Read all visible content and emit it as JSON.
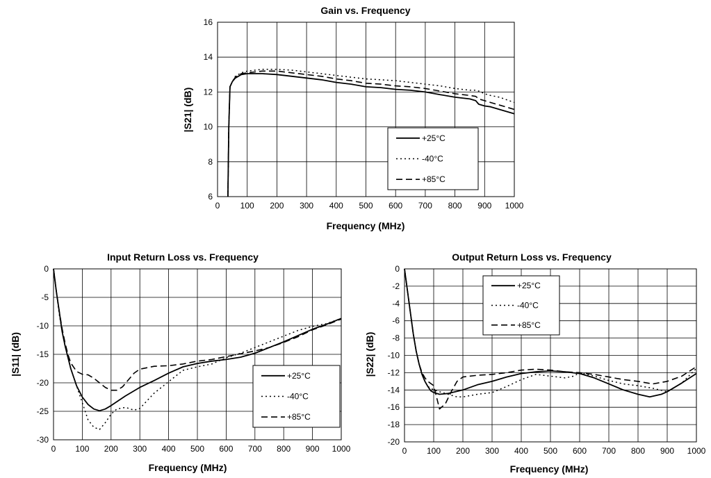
{
  "chart_data": [
    {
      "type": "line",
      "title": "Gain vs. Frequency",
      "xlabel": "Frequency (MHz)",
      "ylabel": "|S21| (dB)",
      "xlim": [
        0,
        1000
      ],
      "ylim": [
        6,
        16
      ],
      "x_ticks": [
        "0",
        "100",
        "200",
        "300",
        "400",
        "500",
        "600",
        "700",
        "800",
        "900",
        "1000"
      ],
      "y_ticks": [
        "6",
        "8",
        "10",
        "12",
        "14",
        "16"
      ],
      "grid": true,
      "legend_placement": "center-right",
      "series": [
        {
          "name": "+25°C",
          "style": "solid",
          "x": [
            35,
            38,
            42,
            50,
            60,
            80,
            100,
            150,
            200,
            250,
            300,
            350,
            400,
            450,
            500,
            550,
            600,
            650,
            700,
            750,
            800,
            850,
            870,
            880,
            900,
            920,
            950,
            1000
          ],
          "y": [
            6.0,
            10.0,
            12.3,
            12.6,
            12.8,
            13.0,
            13.05,
            13.05,
            13.0,
            12.9,
            12.8,
            12.7,
            12.55,
            12.45,
            12.3,
            12.25,
            12.15,
            12.1,
            12.0,
            11.85,
            11.7,
            11.6,
            11.5,
            11.3,
            11.2,
            11.15,
            11.0,
            10.75
          ]
        },
        {
          "name": "-40°C",
          "style": "dotted",
          "x": [
            35,
            38,
            42,
            50,
            60,
            80,
            100,
            150,
            200,
            250,
            300,
            350,
            400,
            450,
            500,
            550,
            600,
            650,
            700,
            750,
            800,
            850,
            870,
            880,
            900,
            920,
            950,
            1000
          ],
          "y": [
            6.0,
            10.0,
            12.3,
            12.6,
            12.9,
            13.1,
            13.2,
            13.3,
            13.3,
            13.25,
            13.15,
            13.05,
            12.95,
            12.85,
            12.75,
            12.7,
            12.65,
            12.55,
            12.45,
            12.35,
            12.2,
            12.1,
            12.1,
            12.05,
            11.9,
            11.8,
            11.7,
            11.4
          ]
        },
        {
          "name": "+85°C",
          "style": "dashed",
          "x": [
            35,
            38,
            42,
            50,
            60,
            80,
            100,
            150,
            200,
            250,
            300,
            350,
            400,
            450,
            500,
            550,
            600,
            650,
            700,
            750,
            800,
            850,
            870,
            880,
            900,
            920,
            950,
            1000
          ],
          "y": [
            6.0,
            10.0,
            12.3,
            12.6,
            12.85,
            13.05,
            13.1,
            13.2,
            13.2,
            13.1,
            13.0,
            12.9,
            12.75,
            12.65,
            12.5,
            12.45,
            12.35,
            12.3,
            12.2,
            12.05,
            11.9,
            11.8,
            11.75,
            11.6,
            11.5,
            11.4,
            11.25,
            11.0
          ]
        }
      ]
    },
    {
      "type": "line",
      "title": "Input Return Loss vs. Frequency",
      "xlabel": "Frequency (MHz)",
      "ylabel": "|S11| (dB)",
      "xlim": [
        0,
        1000
      ],
      "ylim": [
        -30,
        0
      ],
      "x_ticks": [
        "0",
        "100",
        "200",
        "300",
        "400",
        "500",
        "600",
        "700",
        "800",
        "900",
        "1000"
      ],
      "y_ticks": [
        "-30",
        "-25",
        "-20",
        "-15",
        "-10",
        "-5",
        "0"
      ],
      "grid": true,
      "legend_placement": "bottom-right",
      "series": [
        {
          "name": "+25°C",
          "style": "solid",
          "x": [
            0,
            10,
            20,
            30,
            40,
            50,
            60,
            80,
            100,
            120,
            140,
            160,
            180,
            200,
            250,
            300,
            350,
            400,
            450,
            500,
            550,
            600,
            650,
            700,
            750,
            800,
            850,
            900,
            950,
            1000
          ],
          "y": [
            0,
            -4,
            -7.5,
            -11,
            -13.5,
            -15.5,
            -17.5,
            -20.5,
            -22.5,
            -23.8,
            -24.6,
            -24.9,
            -24.6,
            -24.0,
            -22.3,
            -20.8,
            -19.6,
            -18.3,
            -17.2,
            -16.6,
            -16.2,
            -15.9,
            -15.5,
            -14.8,
            -13.8,
            -12.8,
            -11.7,
            -10.6,
            -9.7,
            -8.7
          ]
        },
        {
          "name": "-40°C",
          "style": "dotted",
          "x": [
            0,
            10,
            20,
            30,
            40,
            50,
            60,
            80,
            100,
            120,
            140,
            160,
            180,
            200,
            220,
            250,
            280,
            300,
            350,
            400,
            450,
            500,
            550,
            600,
            650,
            700,
            750,
            800,
            850,
            900,
            950,
            1000
          ],
          "y": [
            0,
            -4,
            -8,
            -11,
            -13.5,
            -15.5,
            -17.5,
            -20.5,
            -23.5,
            -26.5,
            -27.8,
            -28.2,
            -27,
            -25.5,
            -24.6,
            -24.3,
            -24.8,
            -24.5,
            -21.8,
            -19.8,
            -17.8,
            -17.2,
            -16.7,
            -15.6,
            -14.8,
            -13.8,
            -12.8,
            -11.8,
            -10.8,
            -10.1,
            -9.6,
            -8.7
          ]
        },
        {
          "name": "+85°C",
          "style": "dashed",
          "x": [
            0,
            10,
            20,
            30,
            40,
            50,
            60,
            80,
            100,
            120,
            140,
            160,
            180,
            200,
            220,
            240,
            260,
            280,
            300,
            350,
            400,
            450,
            500,
            550,
            600,
            650,
            700,
            750,
            800,
            850,
            900,
            950,
            1000
          ],
          "y": [
            0,
            -4,
            -7.5,
            -10.5,
            -13,
            -15,
            -16.5,
            -18,
            -18.5,
            -18.6,
            -19.2,
            -20,
            -20.8,
            -21.3,
            -21.3,
            -20.7,
            -19.5,
            -18.3,
            -17.6,
            -17.1,
            -17.0,
            -16.7,
            -16.2,
            -15.9,
            -15.4,
            -14.9,
            -14.4,
            -13.8,
            -12.9,
            -11.9,
            -10.7,
            -9.8,
            -8.8
          ]
        }
      ]
    },
    {
      "type": "line",
      "title": "Output Return Loss vs. Frequency",
      "xlabel": "Frequency (MHz)",
      "ylabel": "|S22| (dB)",
      "xlim": [
        0,
        1000
      ],
      "ylim": [
        -20,
        0
      ],
      "x_ticks": [
        "0",
        "100",
        "200",
        "300",
        "400",
        "500",
        "600",
        "700",
        "800",
        "900",
        "1000"
      ],
      "y_ticks": [
        "-20",
        "-18",
        "-16",
        "-14",
        "-12",
        "-10",
        "-8",
        "-6",
        "-4",
        "-2",
        "0"
      ],
      "grid": true,
      "legend_placement": "top-left",
      "series": [
        {
          "name": "+25°C",
          "style": "solid",
          "x": [
            0,
            10,
            20,
            30,
            40,
            50,
            60,
            70,
            80,
            90,
            100,
            120,
            150,
            200,
            250,
            300,
            350,
            400,
            450,
            500,
            550,
            600,
            650,
            700,
            750,
            800,
            840,
            880,
            900,
            950,
            1000
          ],
          "y": [
            0,
            -2.5,
            -5,
            -7.5,
            -9.5,
            -11,
            -12.2,
            -13.0,
            -13.6,
            -14.1,
            -14.3,
            -14.5,
            -14.4,
            -14.0,
            -13.4,
            -13.0,
            -12.5,
            -12.1,
            -11.9,
            -11.8,
            -11.9,
            -12.1,
            -12.6,
            -13.3,
            -14.0,
            -14.5,
            -14.8,
            -14.5,
            -14.2,
            -13.2,
            -12.1
          ]
        },
        {
          "name": "-40°C",
          "style": "dotted",
          "x": [
            0,
            10,
            20,
            30,
            40,
            50,
            60,
            70,
            80,
            100,
            120,
            150,
            180,
            200,
            250,
            300,
            350,
            400,
            450,
            500,
            550,
            580,
            600,
            650,
            700,
            750,
            800,
            850,
            900,
            950,
            1000
          ],
          "y": [
            0,
            -2.5,
            -5,
            -7.5,
            -9.5,
            -11,
            -12.2,
            -13.0,
            -13.6,
            -14.0,
            -14.2,
            -14.5,
            -14.8,
            -14.8,
            -14.5,
            -14.3,
            -13.6,
            -12.8,
            -12.2,
            -12.4,
            -12.6,
            -12.4,
            -12.0,
            -12.4,
            -12.9,
            -13.3,
            -13.5,
            -13.8,
            -14.2,
            -13.2,
            -11.5
          ]
        },
        {
          "name": "+85°C",
          "style": "dashed",
          "x": [
            0,
            10,
            20,
            30,
            40,
            50,
            60,
            70,
            80,
            100,
            120,
            140,
            160,
            180,
            200,
            250,
            300,
            350,
            400,
            450,
            500,
            550,
            600,
            650,
            700,
            750,
            800,
            850,
            900,
            950,
            1000
          ],
          "y": [
            0,
            -2.5,
            -5,
            -7.5,
            -9.5,
            -11,
            -12.0,
            -12.6,
            -13.0,
            -13.5,
            -16.2,
            -15.6,
            -14.2,
            -13.0,
            -12.5,
            -12.3,
            -12.2,
            -12.0,
            -11.7,
            -11.6,
            -11.7,
            -11.9,
            -12.0,
            -12.2,
            -12.5,
            -12.8,
            -13.0,
            -13.3,
            -13.0,
            -12.4,
            -11.3
          ]
        }
      ]
    }
  ]
}
